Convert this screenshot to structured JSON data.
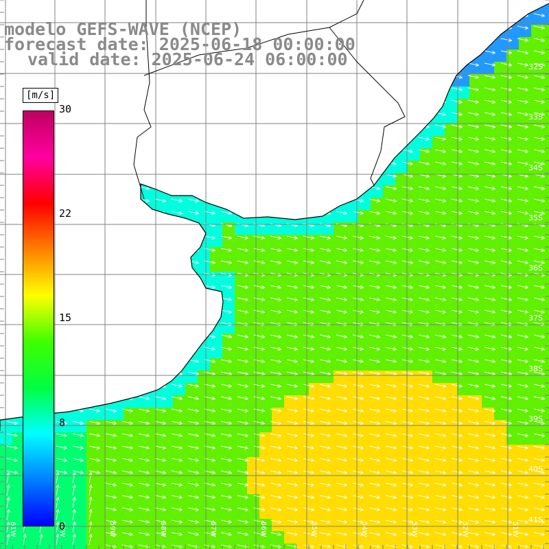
{
  "title": {
    "line1": "modelo GEFS-WAVE (NCEP)",
    "line2": "forecast date: 2025-06-18 00:00:00",
    "line3": "valid date: 2025-06-24 06:00:00"
  },
  "colorbar": {
    "unit": "[m/s]",
    "ticks": [
      "30",
      "22",
      "15",
      "8",
      "0"
    ],
    "colors": [
      "#0000ff",
      "#0080ff",
      "#00ffff",
      "#00ff40",
      "#40ff00",
      "#ffff00",
      "#ff8000",
      "#ff0000",
      "#ff00a0",
      "#c00060"
    ]
  },
  "grid": {
    "lat_labels": [
      "32S",
      "33S",
      "34S",
      "35S",
      "36S",
      "37S",
      "38S",
      "39S",
      "40S",
      "41S"
    ],
    "lon_labels": [
      "61W",
      "60W",
      "59W",
      "58W",
      "57W",
      "56W",
      "55W",
      "54W",
      "53W",
      "52W",
      "51W"
    ]
  },
  "field": {
    "parameter": "wind speed",
    "colors": {
      "ocean_high": "#ffdd00",
      "ocean_mid": "#60f000",
      "ocean_low": "#00ff70",
      "ocean_lowest": "#00ffdd",
      "ocean_weak": "#2299ff",
      "land": "#ffffff",
      "grid": "#808080",
      "coast": "#000000",
      "arrow": "#ffffff"
    }
  }
}
